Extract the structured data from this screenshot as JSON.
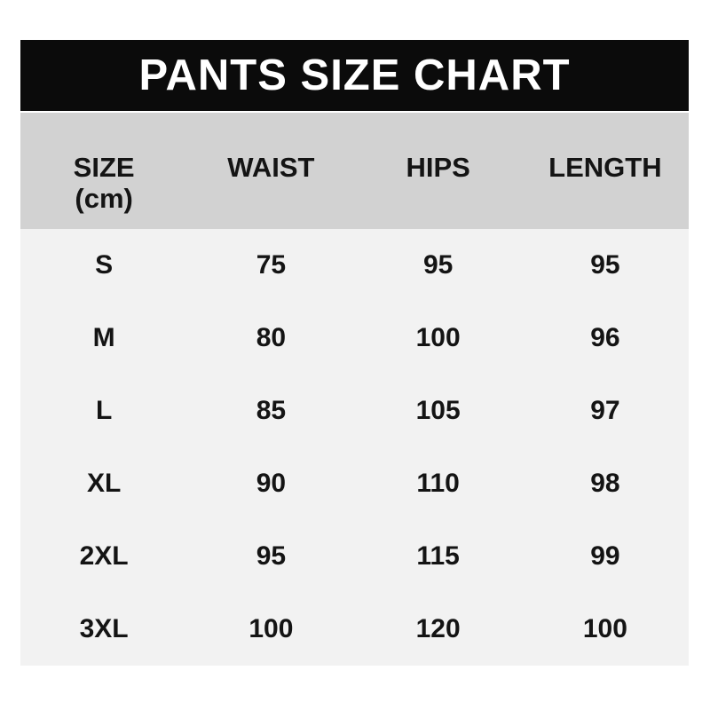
{
  "title_bar": {
    "text": "PANTS SIZE CHART"
  },
  "colors": {
    "title_bg": "#0b0b0b",
    "title_text": "#ffffff",
    "header_bg": "#d2d2d2",
    "body_bg": "#f2f2f2",
    "text": "#141414",
    "page_bg": "#ffffff"
  },
  "table": {
    "headers": {
      "size_line1": "SIZE",
      "size_line2": "(cm)",
      "waist": "WAIST",
      "hips": "HIPS",
      "length": "LENGTH"
    },
    "rows": [
      {
        "size": "S",
        "waist": "75",
        "hips": "95",
        "length": "95"
      },
      {
        "size": "M",
        "waist": "80",
        "hips": "100",
        "length": "96"
      },
      {
        "size": "L",
        "waist": "85",
        "hips": "105",
        "length": "97"
      },
      {
        "size": "XL",
        "waist": "90",
        "hips": "110",
        "length": "98"
      },
      {
        "size": "2XL",
        "waist": "95",
        "hips": "115",
        "length": "99"
      },
      {
        "size": "3XL",
        "waist": "100",
        "hips": "120",
        "length": "100"
      }
    ]
  },
  "chart_data": {
    "type": "table",
    "title": "PANTS SIZE CHART",
    "columns": [
      "SIZE (cm)",
      "WAIST",
      "HIPS",
      "LENGTH"
    ],
    "rows": [
      [
        "S",
        75,
        95,
        95
      ],
      [
        "M",
        80,
        100,
        96
      ],
      [
        "L",
        85,
        105,
        97
      ],
      [
        "XL",
        90,
        110,
        98
      ],
      [
        "2XL",
        95,
        115,
        99
      ],
      [
        "3XL",
        100,
        120,
        100
      ]
    ]
  }
}
